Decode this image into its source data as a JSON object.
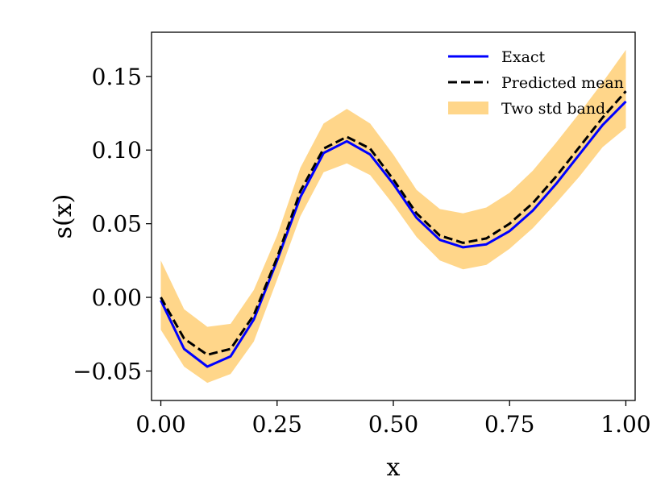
{
  "chart_data": {
    "type": "line",
    "xlabel": "x",
    "ylabel": "s(x)",
    "xlim": [
      -0.02,
      1.02
    ],
    "ylim": [
      -0.07,
      0.18
    ],
    "xticks": [
      0.0,
      0.25,
      0.5,
      0.75,
      1.0
    ],
    "xtick_labels": [
      "0.00",
      "0.25",
      "0.50",
      "0.75",
      "1.00"
    ],
    "yticks": [
      -0.05,
      0.0,
      0.05,
      0.1,
      0.15
    ],
    "ytick_labels": [
      "−0.05",
      "0.00",
      "0.05",
      "0.10",
      "0.15"
    ],
    "grid": false,
    "legend_position": "top-right",
    "x": [
      0.0,
      0.05,
      0.1,
      0.15,
      0.2,
      0.25,
      0.3,
      0.35,
      0.4,
      0.45,
      0.5,
      0.55,
      0.6,
      0.65,
      0.7,
      0.75,
      0.8,
      0.85,
      0.9,
      0.95,
      1.0
    ],
    "series": [
      {
        "name": "Exact",
        "kind": "line",
        "color": "#0000ff",
        "y": [
          -0.002,
          -0.035,
          -0.047,
          -0.04,
          -0.015,
          0.025,
          0.068,
          0.098,
          0.106,
          0.097,
          0.077,
          0.054,
          0.039,
          0.034,
          0.036,
          0.045,
          0.059,
          0.077,
          0.097,
          0.117,
          0.133
        ]
      },
      {
        "name": "Predicted mean",
        "kind": "dashed-line",
        "color": "#000000",
        "y": [
          0.0,
          -0.028,
          -0.039,
          -0.035,
          -0.012,
          0.027,
          0.072,
          0.101,
          0.109,
          0.101,
          0.08,
          0.057,
          0.042,
          0.037,
          0.04,
          0.05,
          0.064,
          0.082,
          0.102,
          0.122,
          0.14
        ]
      },
      {
        "name": "Two std band",
        "kind": "band",
        "color": "#ffd68a",
        "y_lower": [
          -0.022,
          -0.047,
          -0.058,
          -0.052,
          -0.03,
          0.012,
          0.055,
          0.085,
          0.091,
          0.083,
          0.063,
          0.041,
          0.025,
          0.019,
          0.022,
          0.033,
          0.047,
          0.064,
          0.082,
          0.102,
          0.115
        ],
        "y_upper": [
          0.025,
          -0.008,
          -0.02,
          -0.018,
          0.005,
          0.042,
          0.088,
          0.118,
          0.128,
          0.118,
          0.097,
          0.073,
          0.06,
          0.057,
          0.061,
          0.071,
          0.086,
          0.105,
          0.125,
          0.146,
          0.168
        ]
      }
    ]
  }
}
